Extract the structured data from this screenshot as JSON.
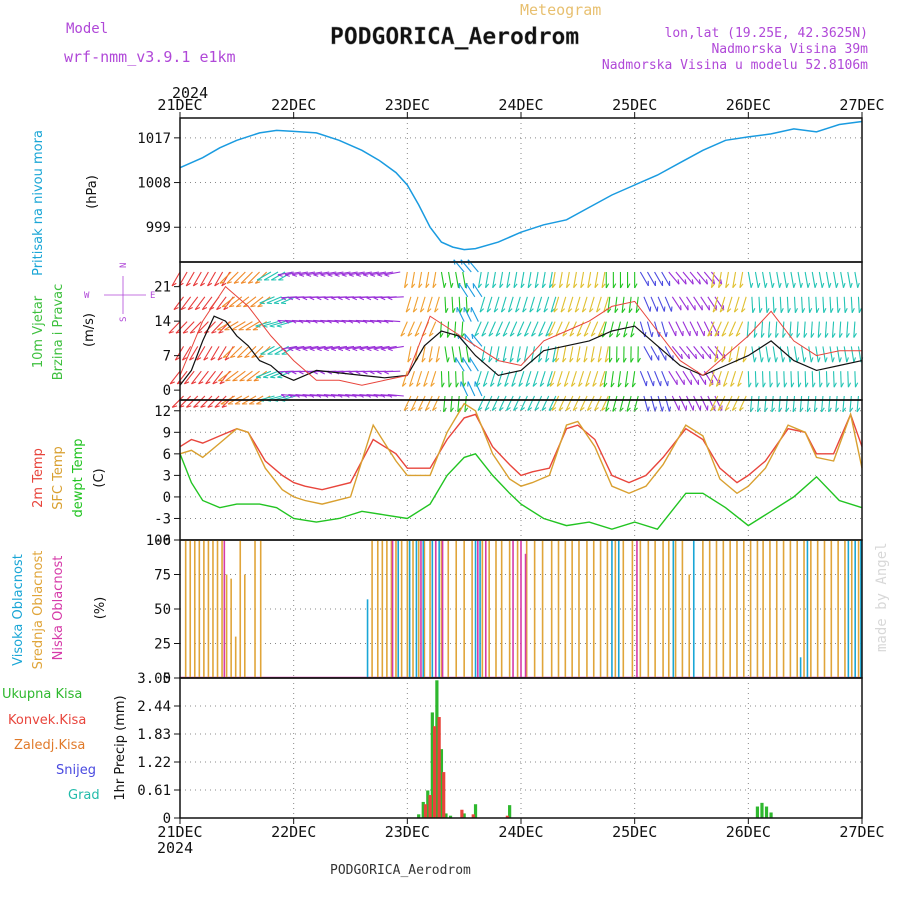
{
  "header": {
    "model_label": "Model",
    "model_name": "wrf-nmm_v3.9.1 e1km",
    "meteogram_label": "Meteogram",
    "station_title": "PODGORICA_Aerodrom",
    "lonlat": "lon,lat (19.25E, 42.3625N)",
    "elevation": "Nadmorska Visina 39m",
    "model_elevation": "Nadmorska Visina u modelu 52.8106m",
    "year_top": "2024",
    "year_bottom": "2024",
    "footer_station": "PODGORICA_Aerodrom",
    "credit": "made by Angel"
  },
  "colors": {
    "pressure": "#1a9be0",
    "temp2m": "#e8453c",
    "sfc": "#d9a030",
    "dew": "#22c422",
    "high_cloud": "#1aa6d6",
    "mid_cloud": "#e0a53a",
    "low_cloud": "#d63aa8",
    "total_precip": "#2eb82e",
    "conv_precip": "#e8453c",
    "frozen_precip": "#e07a2a",
    "snow": "#4a4ae0",
    "graupel": "#22bbaa",
    "wind_label": "#3ec03e",
    "pressure_label": "#1aa6d6",
    "violet": "#b048d8"
  },
  "chart_data": [
    {
      "type": "line",
      "id": "pressure",
      "ylabel": "Pritisak na nivou mora",
      "unit": "(hPa)",
      "ylim": [
        992,
        1021
      ],
      "yticks": [
        999,
        1008,
        1017
      ],
      "x_days": [
        "21DEC",
        "22DEC",
        "23DEC",
        "24DEC",
        "25DEC",
        "26DEC",
        "27DEC"
      ],
      "series": [
        {
          "key": "pressure",
          "x": [
            0,
            0.1,
            0.2,
            0.35,
            0.5,
            0.7,
            0.85,
            1.0,
            1.2,
            1.4,
            1.6,
            1.75,
            1.9,
            2.0,
            2.1,
            2.2,
            2.3,
            2.4,
            2.5,
            2.6,
            2.8,
            3.0,
            3.2,
            3.4,
            3.6,
            3.8,
            4.0,
            4.2,
            4.4,
            4.6,
            4.8,
            5.0,
            5.2,
            5.4,
            5.6,
            5.8,
            6.0
          ],
          "values": [
            1011,
            1012,
            1013,
            1015,
            1016.5,
            1018,
            1018.5,
            1018.3,
            1018,
            1016.5,
            1014.5,
            1012.5,
            1010,
            1007.5,
            1003.5,
            999,
            996,
            995,
            994.5,
            994.7,
            996,
            998,
            999.5,
            1000.5,
            1003,
            1005.5,
            1007.5,
            1009.5,
            1012,
            1014.5,
            1016.5,
            1017.2,
            1017.8,
            1018.8,
            1018.2,
            1019.7,
            1020.3
          ]
        }
      ]
    },
    {
      "type": "line",
      "id": "wind",
      "ylabel": "10m Vjetar",
      "ylabel2": "Brzina i Pravac",
      "unit": "(m/s)",
      "compass": {
        "n": "N",
        "s": "S",
        "w": "W",
        "e": "E"
      },
      "ylim": [
        -2,
        26
      ],
      "yticks": [
        0,
        7,
        14,
        21
      ],
      "series": [
        {
          "name": "speed",
          "x": [
            0,
            0.1,
            0.2,
            0.3,
            0.4,
            0.5,
            0.6,
            0.7,
            0.8,
            0.9,
            1.0,
            1.1,
            1.2,
            1.4,
            1.6,
            1.8,
            2.0,
            2.15,
            2.3,
            2.45,
            2.6,
            2.8,
            3.0,
            3.2,
            3.4,
            3.6,
            3.8,
            4.0,
            4.2,
            4.4,
            4.6,
            4.8,
            5.0,
            5.2,
            5.4,
            5.6,
            5.8,
            6.0
          ],
          "values": [
            1,
            4,
            10,
            15,
            14,
            11,
            9,
            6,
            5,
            3,
            2,
            3,
            4,
            3.5,
            3,
            2.5,
            3,
            9,
            12,
            11,
            7,
            3,
            4,
            8,
            9,
            10,
            12,
            13,
            9,
            5,
            3,
            5,
            7,
            10,
            6,
            4,
            5,
            6
          ]
        },
        {
          "name": "gust",
          "x": [
            0,
            0.2,
            0.4,
            0.6,
            0.8,
            1.0,
            1.2,
            1.4,
            1.6,
            1.8,
            2.0,
            2.2,
            2.4,
            2.6,
            2.8,
            3.0,
            3.2,
            3.4,
            3.6,
            3.8,
            4.0,
            4.2,
            4.4,
            4.6,
            4.8,
            5.0,
            5.2,
            5.4,
            5.6,
            5.8,
            6.0
          ],
          "values": [
            3,
            14,
            21,
            17,
            11,
            6,
            2,
            2,
            1,
            2,
            3,
            15,
            12,
            9,
            6,
            5,
            10,
            12,
            14,
            17,
            18,
            12,
            6,
            3,
            7,
            11,
            16,
            10,
            7,
            8,
            8
          ]
        }
      ],
      "arrow_bands": [
        {
          "from": 0.0,
          "to": 0.45,
          "color": "#e83a3a",
          "dir": 220
        },
        {
          "from": 0.45,
          "to": 0.8,
          "color": "#f08a2a",
          "dir": 235
        },
        {
          "from": 0.8,
          "to": 1.0,
          "color": "#22c4b4",
          "dir": 250
        },
        {
          "from": 1.0,
          "to": 2.0,
          "color": "#9a30d8",
          "dir": 270
        },
        {
          "from": 2.0,
          "to": 2.3,
          "color": "#f0a030",
          "dir": 200
        },
        {
          "from": 2.3,
          "to": 2.5,
          "color": "#22c422",
          "dir": 180
        },
        {
          "from": 2.5,
          "to": 2.65,
          "color": "#1a9be0",
          "dir": 330
        },
        {
          "from": 2.65,
          "to": 3.3,
          "color": "#22c4b4",
          "dir": 200
        },
        {
          "from": 3.3,
          "to": 3.75,
          "color": "#e0c030",
          "dir": 200
        },
        {
          "from": 3.75,
          "to": 4.05,
          "color": "#22c422",
          "dir": 190
        },
        {
          "from": 4.05,
          "to": 4.3,
          "color": "#4a4ae0",
          "dir": 160
        },
        {
          "from": 4.3,
          "to": 4.7,
          "color": "#9a30d8",
          "dir": 150
        },
        {
          "from": 4.7,
          "to": 5.0,
          "color": "#e0c030",
          "dir": 200
        },
        {
          "from": 5.0,
          "to": 6.0,
          "color": "#22c4b4",
          "dir": 180
        }
      ]
    },
    {
      "type": "line",
      "id": "temperature",
      "ylabel": "2m Temp",
      "ylabel2": "SFC Temp",
      "ylabel3": "dewpt Temp",
      "unit": "(C)",
      "ylim": [
        -6,
        13.5
      ],
      "yticks": [
        -6,
        -3,
        0,
        3,
        6,
        9,
        12
      ],
      "series": [
        {
          "key": "temp2m",
          "x": [
            0,
            0.1,
            0.2,
            0.35,
            0.5,
            0.6,
            0.75,
            0.9,
            1.0,
            1.1,
            1.25,
            1.5,
            1.7,
            1.9,
            2.0,
            2.2,
            2.35,
            2.5,
            2.6,
            2.75,
            2.9,
            3.0,
            3.1,
            3.25,
            3.4,
            3.5,
            3.65,
            3.8,
            3.95,
            4.1,
            4.25,
            4.45,
            4.6,
            4.75,
            4.9,
            5.0,
            5.15,
            5.35,
            5.5,
            5.6,
            5.75,
            5.9,
            6.0
          ],
          "values": [
            7,
            8,
            7.5,
            8.5,
            9.5,
            9,
            5,
            3,
            2,
            1.5,
            1,
            2,
            8,
            6,
            4,
            4,
            8,
            11,
            11.5,
            7,
            4.5,
            3,
            3.5,
            4,
            9.5,
            10,
            8,
            3,
            2,
            3,
            5.5,
            9.5,
            8,
            4,
            2,
            3,
            5,
            9.5,
            9,
            6,
            6,
            11.5,
            7
          ]
        },
        {
          "key": "sfc",
          "x": [
            0,
            0.1,
            0.2,
            0.35,
            0.5,
            0.6,
            0.75,
            0.9,
            1.0,
            1.1,
            1.25,
            1.5,
            1.7,
            1.9,
            2.0,
            2.2,
            2.35,
            2.5,
            2.6,
            2.75,
            2.9,
            3.0,
            3.1,
            3.25,
            3.4,
            3.5,
            3.65,
            3.8,
            3.95,
            4.1,
            4.25,
            4.45,
            4.6,
            4.75,
            4.9,
            5.0,
            5.15,
            5.35,
            5.5,
            5.6,
            5.75,
            5.9,
            6.0
          ],
          "values": [
            6,
            6.5,
            5.5,
            7.5,
            9.5,
            9,
            4,
            1,
            0,
            -0.5,
            -1,
            0,
            10,
            5,
            3,
            3,
            9,
            13,
            12,
            6,
            2.5,
            1.5,
            2,
            3,
            10,
            10.5,
            7,
            1.5,
            0.5,
            1.5,
            4.5,
            10,
            8.5,
            2.5,
            0.5,
            1.5,
            4,
            10,
            9,
            5.5,
            5,
            11.5,
            4
          ]
        },
        {
          "key": "dew",
          "x": [
            0,
            0.1,
            0.2,
            0.35,
            0.5,
            0.7,
            0.85,
            1.0,
            1.2,
            1.4,
            1.6,
            1.8,
            2.0,
            2.2,
            2.35,
            2.5,
            2.6,
            2.75,
            2.9,
            3.0,
            3.2,
            3.4,
            3.6,
            3.8,
            4.0,
            4.2,
            4.45,
            4.6,
            4.8,
            5.0,
            5.2,
            5.4,
            5.6,
            5.8,
            6.0
          ],
          "values": [
            6,
            2,
            -0.5,
            -1.5,
            -1,
            -1,
            -1.5,
            -3,
            -3.5,
            -3,
            -2,
            -2.5,
            -3,
            -1,
            3,
            5.5,
            6,
            3,
            0.5,
            -1,
            -3,
            -4,
            -3.5,
            -4.5,
            -3.5,
            -4.5,
            0.5,
            0.5,
            -1.5,
            -4,
            -2,
            0,
            2.8,
            -0.5,
            -1.5
          ]
        }
      ]
    },
    {
      "type": "bar",
      "id": "clouds",
      "ylabel": "Visoka Oblacnost",
      "ylabel2": "Srednja Oblacnost",
      "ylabel3": "Niska Oblacnost",
      "unit": "(%)",
      "ylim": [
        0,
        100
      ],
      "yticks": [
        0,
        25,
        50,
        75,
        100
      ],
      "series": [
        {
          "key": "mid_cloud",
          "x": [
            0.05,
            0.09,
            0.13,
            0.17,
            0.21,
            0.25,
            0.29,
            0.33,
            0.37,
            0.41,
            0.45,
            0.49,
            0.53,
            0.57,
            0.66,
            0.71,
            1.69,
            1.74,
            1.78,
            1.82,
            1.86,
            1.9,
            1.95,
            2.0,
            2.05,
            2.1,
            2.15,
            2.2,
            2.25,
            2.3,
            2.36,
            2.43,
            2.5,
            2.57,
            2.66,
            2.72,
            2.78,
            2.83,
            2.9,
            2.97,
            3.05,
            3.12,
            3.19,
            3.27,
            3.33,
            3.39,
            3.45,
            3.51,
            3.58,
            3.64,
            3.7,
            3.76,
            3.83,
            3.9,
            3.98,
            4.05,
            4.12,
            4.18,
            4.25,
            4.3,
            4.36,
            4.42,
            4.48,
            4.6,
            4.66,
            4.72,
            4.78,
            4.84,
            4.9,
            4.96,
            5.02,
            5.08,
            5.13,
            5.19,
            5.25,
            5.31,
            5.37,
            5.43,
            5.49,
            5.55,
            5.61,
            5.67,
            5.73,
            5.79,
            5.85,
            5.91,
            5.97
          ],
          "values": [
            100,
            100,
            100,
            100,
            100,
            100,
            100,
            100,
            100,
            75,
            72,
            30,
            100,
            75,
            100,
            100,
            100,
            100,
            100,
            100,
            100,
            100,
            100,
            100,
            100,
            100,
            100,
            100,
            100,
            100,
            100,
            100,
            100,
            100,
            100,
            100,
            100,
            100,
            100,
            100,
            100,
            100,
            100,
            100,
            100,
            100,
            100,
            100,
            100,
            100,
            100,
            100,
            100,
            100,
            100,
            100,
            100,
            100,
            100,
            100,
            100,
            100,
            75,
            100,
            100,
            100,
            100,
            100,
            100,
            100,
            100,
            100,
            100,
            100,
            100,
            100,
            100,
            100,
            100,
            100,
            100,
            100,
            100,
            100,
            100,
            100,
            100
          ]
        },
        {
          "key": "high_cloud",
          "x": [
            1.65,
            1.92,
            2.02,
            2.08,
            2.14,
            2.22,
            2.28,
            2.6,
            2.64,
            3.8,
            3.86,
            4.34,
            4.52,
            5.46,
            5.52,
            5.88,
            5.94,
            5.99
          ],
          "values": [
            57,
            100,
            100,
            100,
            100,
            100,
            100,
            100,
            100,
            100,
            100,
            100,
            100,
            15,
            100,
            100,
            100,
            100
          ]
        },
        {
          "key": "low_cloud",
          "x": [
            0.39,
            1.87,
            2.12,
            2.25,
            2.31,
            2.62,
            2.69,
            2.93,
            3.0,
            3.04,
            4.02
          ],
          "values": [
            100,
            100,
            100,
            100,
            100,
            100,
            100,
            100,
            100,
            90,
            100
          ]
        }
      ]
    },
    {
      "type": "bar",
      "id": "precip",
      "ylabel": "1hr Precip (mm)",
      "ylim": [
        0,
        3.05
      ],
      "yticks": [
        0,
        0.61,
        1.22,
        1.83,
        2.44,
        3.05
      ],
      "legend": [
        "Ukupna Kisa",
        "Konvek.Kisa",
        "Zaledj.Kisa",
        "Snijeg",
        "Grad"
      ],
      "x_days": [
        "21DEC",
        "22DEC",
        "23DEC",
        "24DEC",
        "25DEC",
        "26DEC",
        "27DEC"
      ],
      "series": [
        {
          "key": "total_precip",
          "x": [
            2.1,
            2.14,
            2.18,
            2.22,
            2.26,
            2.3,
            2.34,
            2.38,
            2.5,
            2.6,
            2.9,
            5.08,
            5.12,
            5.16,
            5.2
          ],
          "values": [
            0.08,
            0.35,
            0.6,
            2.3,
            3.0,
            1.5,
            0.1,
            0.05,
            0.1,
            0.3,
            0.28,
            0.25,
            0.33,
            0.25,
            0.12
          ]
        },
        {
          "key": "conv_precip",
          "x": [
            2.16,
            2.2,
            2.24,
            2.28,
            2.32,
            2.48,
            2.58,
            2.88
          ],
          "values": [
            0.3,
            0.5,
            2.0,
            2.2,
            1.0,
            0.18,
            0.08,
            0.05
          ]
        }
      ]
    }
  ]
}
